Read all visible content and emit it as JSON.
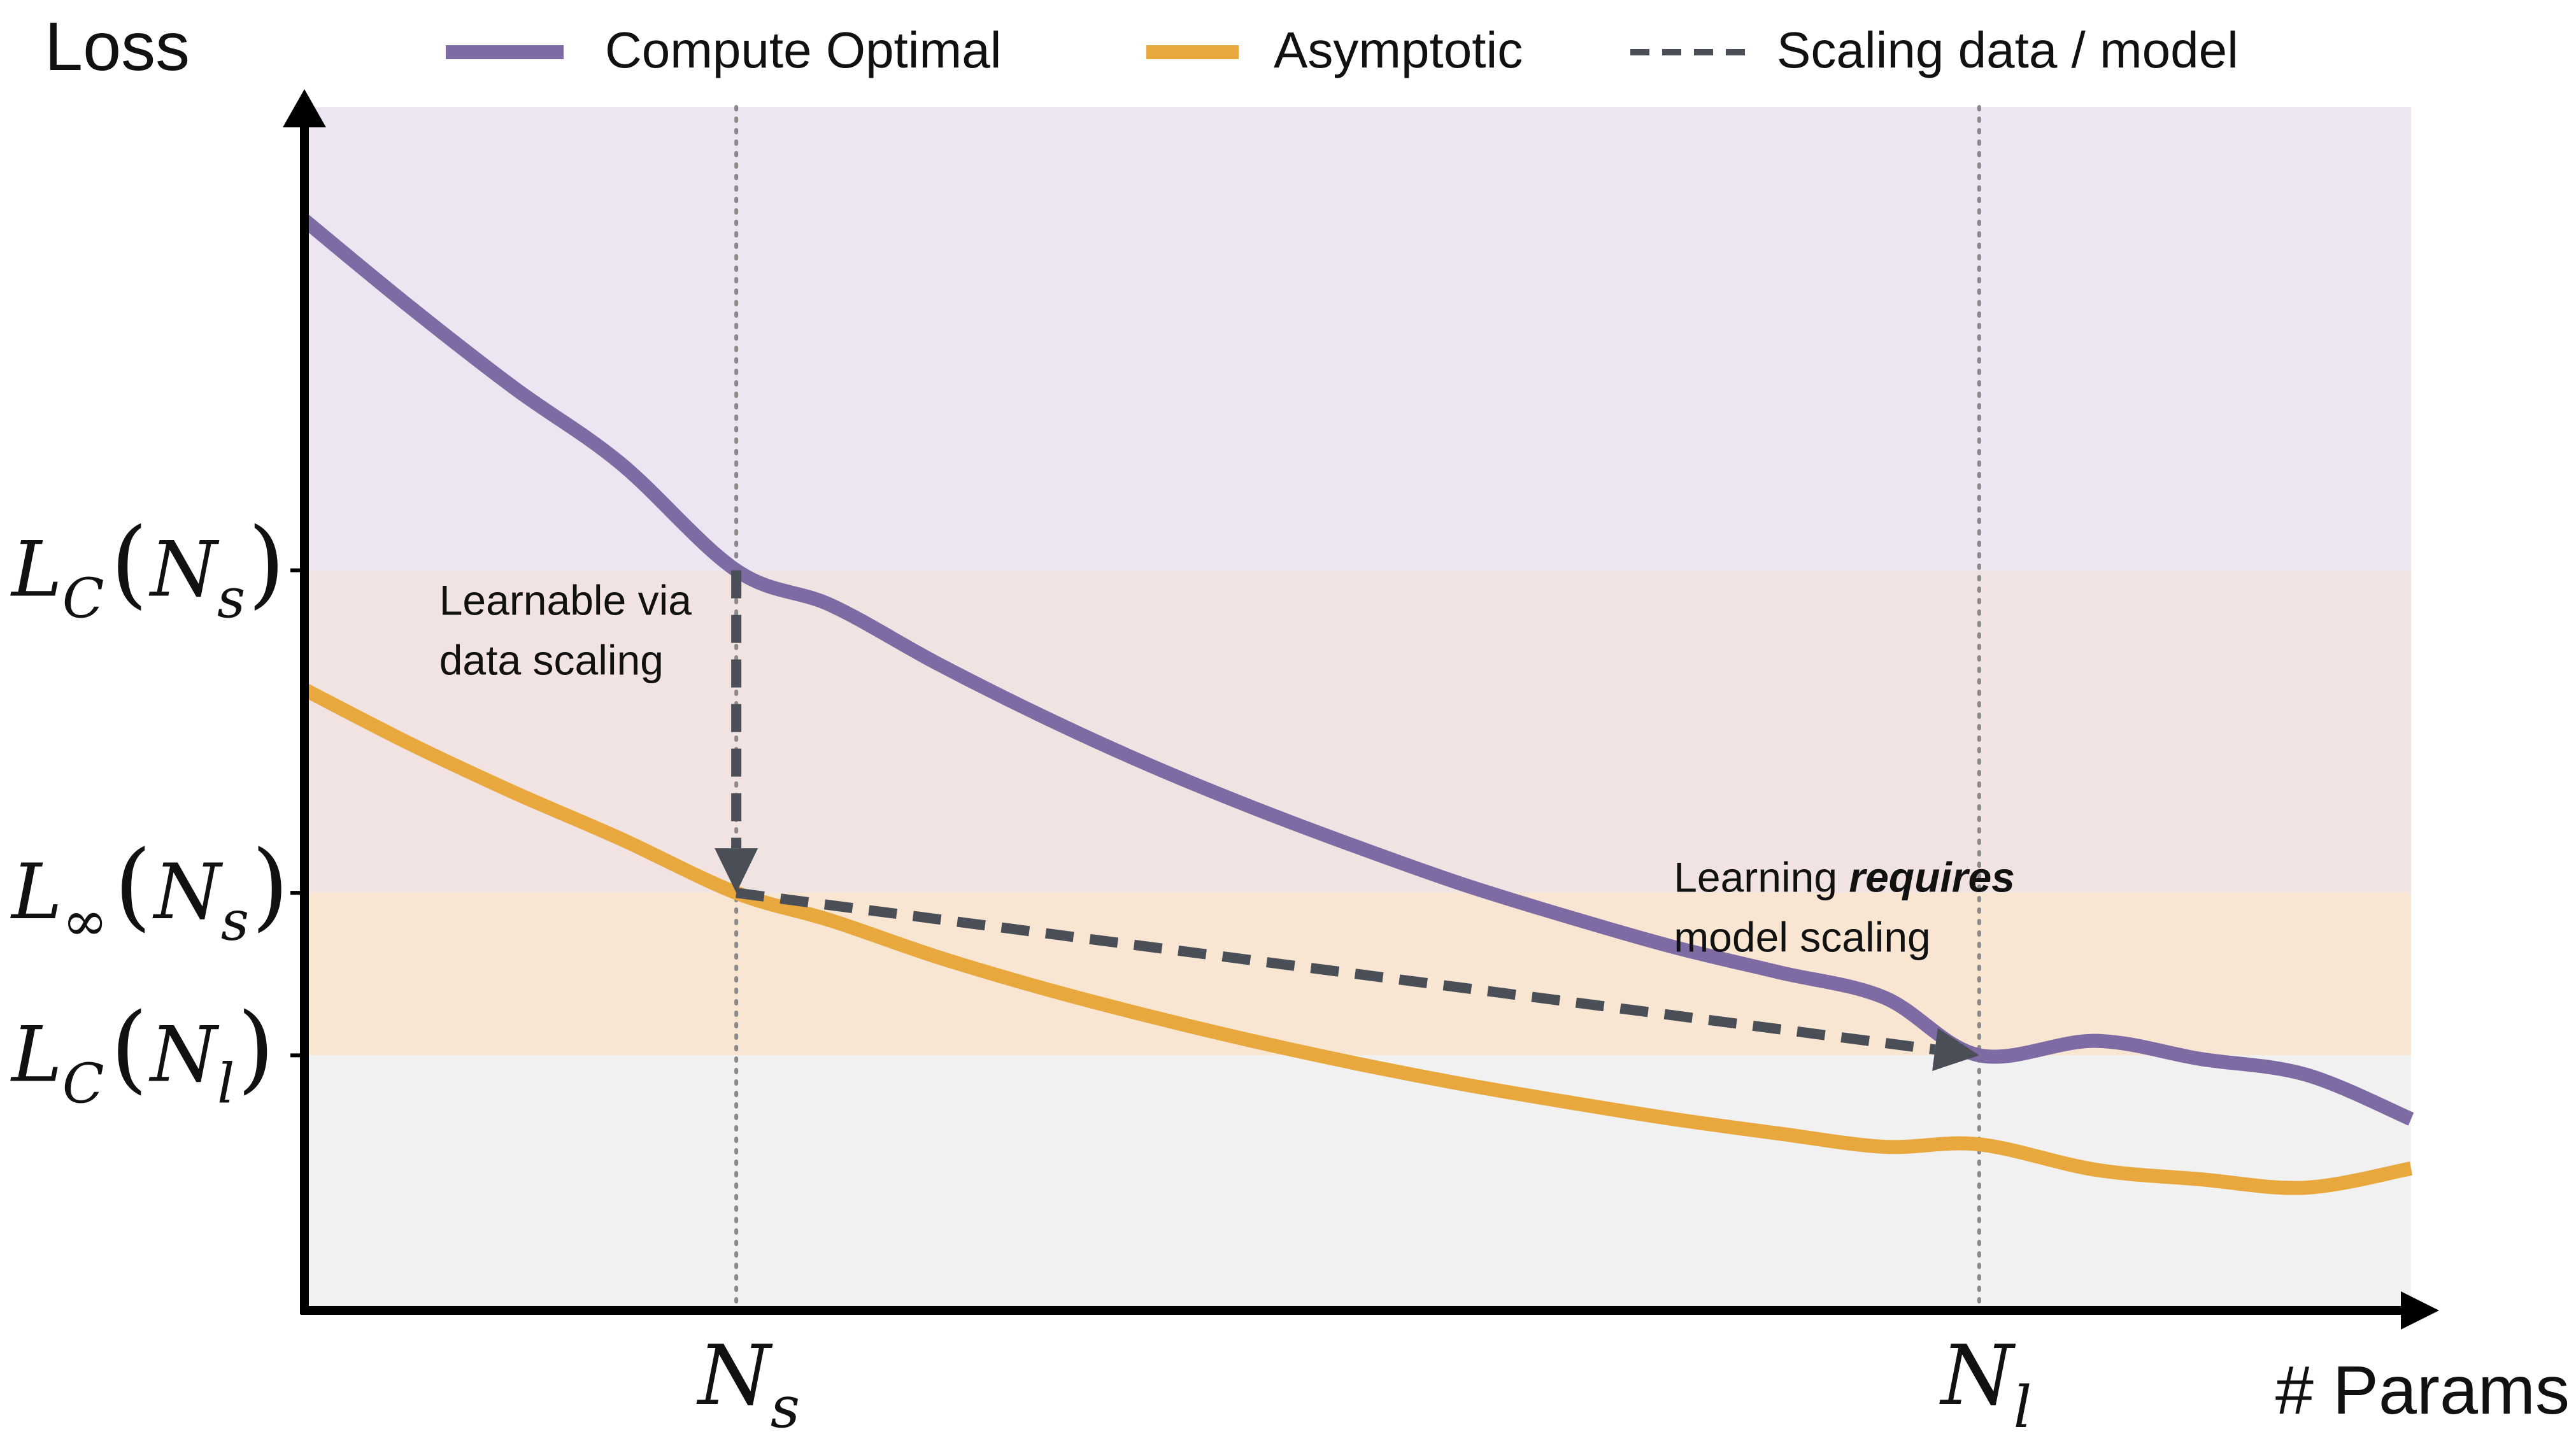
{
  "chart_data": {
    "type": "line",
    "axes": {
      "y_title": "Loss",
      "x_title": "# Params",
      "tick_labels": false
    },
    "legend": {
      "placement": "top",
      "entries": [
        {
          "name": "Compute Optimal",
          "color": "#7e6ba3",
          "style": "solid"
        },
        {
          "name": "Asymptotic",
          "color": "#e8a83e",
          "style": "solid"
        },
        {
          "name": "Scaling data / model",
          "color": "#4a4e57",
          "style": "dashed"
        }
      ]
    },
    "xlim": [
      0,
      1
    ],
    "ylim": [
      0,
      1
    ],
    "series": [
      {
        "name": "Compute Optimal",
        "color": "#7e6ba3",
        "x": [
          0.0,
          0.05,
          0.1,
          0.15,
          0.205,
          0.25,
          0.3,
          0.35,
          0.4,
          0.45,
          0.5,
          0.55,
          0.6,
          0.65,
          0.7,
          0.75,
          0.795,
          0.85,
          0.9,
          0.95,
          1.0
        ],
        "y": [
          0.906,
          0.834,
          0.766,
          0.704,
          0.615,
          0.586,
          0.538,
          0.494,
          0.454,
          0.418,
          0.385,
          0.354,
          0.327,
          0.302,
          0.281,
          0.26,
          0.212,
          0.224,
          0.209,
          0.196,
          0.159
        ]
      },
      {
        "name": "Asymptotic",
        "color": "#e8a83e",
        "x": [
          0.0,
          0.05,
          0.1,
          0.15,
          0.205,
          0.25,
          0.3,
          0.35,
          0.4,
          0.45,
          0.5,
          0.55,
          0.6,
          0.65,
          0.7,
          0.75,
          0.795,
          0.85,
          0.9,
          0.95,
          1.0
        ],
        "y": [
          0.516,
          0.471,
          0.43,
          0.392,
          0.347,
          0.324,
          0.294,
          0.268,
          0.245,
          0.224,
          0.205,
          0.188,
          0.173,
          0.159,
          0.147,
          0.136,
          0.138,
          0.117,
          0.109,
          0.102,
          0.118
        ]
      }
    ],
    "markers_x": [
      {
        "label": "N",
        "sub": "s",
        "x": 0.205
      },
      {
        "label": "N",
        "sub": "l",
        "x": 0.795
      }
    ],
    "markers_y": [
      {
        "label": "L",
        "sub": "C",
        "arg": "N",
        "argsub": "s",
        "y": 0.615
      },
      {
        "label": "L",
        "sub": "∞",
        "arg": "N",
        "argsub": "s",
        "y": 0.347
      },
      {
        "label": "L",
        "sub": "C",
        "arg": "N",
        "argsub": "l",
        "y": 0.212
      }
    ],
    "bands": [
      {
        "from": 0.615,
        "to": 1.0,
        "color": "#ece6f2"
      },
      {
        "from": 0.347,
        "to": 0.615,
        "color": "#f1e3e1"
      },
      {
        "from": 0.212,
        "to": 0.347,
        "color": "#f8e6d2"
      },
      {
        "from": 0.0,
        "to": 0.212,
        "color": "#f1f1f1"
      }
    ],
    "arrows": [
      {
        "from": [
          0.205,
          0.615
        ],
        "to": [
          0.205,
          0.347
        ],
        "style": "dashed",
        "color": "#4a4e57"
      },
      {
        "from": [
          0.205,
          0.347
        ],
        "to": [
          0.795,
          0.212
        ],
        "style": "dashed",
        "color": "#4a4e57"
      }
    ],
    "annotations": [
      {
        "lines": [
          "Learnable via",
          "data scaling"
        ],
        "x": 0.064,
        "y": 0.578
      },
      {
        "lines": [
          "Learning ",
          "requires",
          "model scaling"
        ],
        "x": 0.65,
        "y": 0.348
      }
    ]
  }
}
